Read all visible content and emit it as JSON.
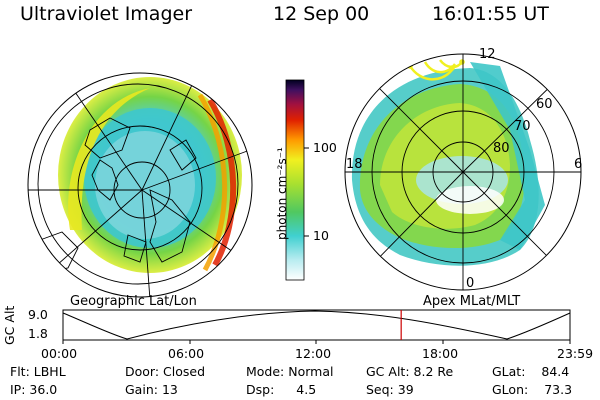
{
  "header": {
    "instrument": "Ultraviolet Imager",
    "date": "12 Sep 00",
    "time": "16:01:55 UT"
  },
  "colorbar": {
    "unit": "photon cm⁻²s⁻¹",
    "ticks": [
      "100",
      "10"
    ]
  },
  "left_map": {
    "caption": "Geographic Lat/Lon"
  },
  "right_map": {
    "caption": "Apex  MLat/MLT",
    "mlt_labels": {
      "top": "12",
      "left": "18",
      "right": "6",
      "bottom": "0"
    },
    "lat_labels": [
      "60",
      "70",
      "80"
    ]
  },
  "altitude_plot": {
    "ylabel": "GC Alt",
    "yticks": [
      "9.0",
      "1.8"
    ],
    "xticks": [
      "00:00",
      "06:00",
      "12:00",
      "18:00",
      "23:59"
    ],
    "current_time_fraction": 0.667
  },
  "status": {
    "filter_label": "Flt:",
    "filter_value": "LBHL",
    "ip_label": "IP:",
    "ip_value": "36.0",
    "door_label": "Door:",
    "door_value": "Closed",
    "gain_label": "Gain:",
    "gain_value": "13",
    "mode_label": "Mode:",
    "mode_value": "Normal",
    "dsp_label": "Dsp:",
    "dsp_value": "4.5",
    "gcalt_label": "GC Alt:",
    "gcalt_value": "8.2 Re",
    "seq_label": "Seq:",
    "seq_value": "39",
    "glat_label": "GLat:",
    "glat_value": "84.4",
    "glon_label": "GLon:",
    "glon_value": "73.3"
  },
  "colors": {
    "marker": "#cc0000"
  }
}
